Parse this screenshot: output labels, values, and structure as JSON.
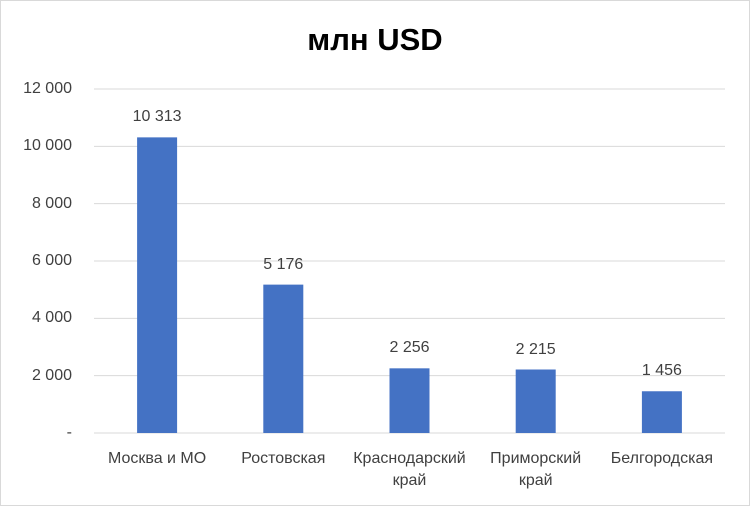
{
  "chart_data": {
    "type": "bar",
    "title": "млн USD",
    "categories": [
      "Москва и МО",
      "Ростовская",
      "Краснодарский край",
      "Приморский край",
      "Белгородская"
    ],
    "values": [
      10313,
      5176,
      2256,
      2215,
      1456
    ],
    "value_labels": [
      "10 313",
      "5 176",
      "2 256",
      "2 215",
      "1 456"
    ],
    "color": "#4472c4",
    "ylim": [
      0,
      12000
    ],
    "yticks": [
      {
        "value": 0,
        "label": "-"
      },
      {
        "value": 2000,
        "label": "2 000"
      },
      {
        "value": 4000,
        "label": "4 000"
      },
      {
        "value": 6000,
        "label": "6 000"
      },
      {
        "value": 8000,
        "label": "8 000"
      },
      {
        "value": 10000,
        "label": "10 000"
      },
      {
        "value": 12000,
        "label": "12 000"
      }
    ],
    "grid": true
  }
}
